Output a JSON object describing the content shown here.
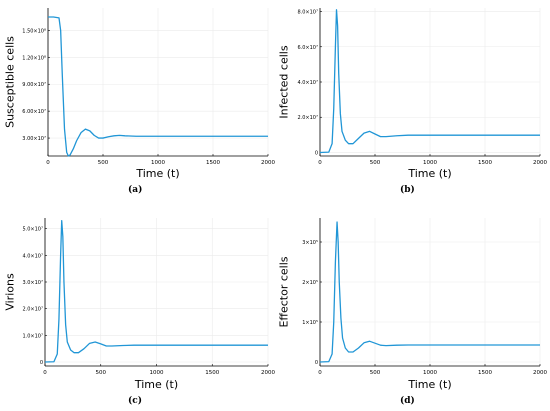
{
  "chart_data": [
    {
      "type": "line",
      "panel_label": "(a)",
      "xlabel": "Time (t)",
      "ylabel": "Susceptible cells",
      "xlim": [
        0,
        2000
      ],
      "ylim": [
        10000000,
        175000000
      ],
      "xticks": [
        0,
        500,
        1000,
        1500,
        2000
      ],
      "xtick_labels": [
        "0",
        "500",
        "1000",
        "1500",
        "2000"
      ],
      "yticks": [
        30000000,
        60000000,
        90000000,
        120000000,
        150000000
      ],
      "ytick_labels": [
        "3.00×10⁷",
        "6.00×10⁷",
        "9.00×10⁷",
        "1.20×10⁸",
        "1.50×10⁸"
      ],
      "grid": true,
      "color": "#2196d6",
      "series": [
        {
          "x": [
            0,
            50,
            100,
            115,
            130,
            150,
            170,
            185,
            200,
            230,
            260,
            300,
            340,
            380,
            420,
            460,
            500,
            550,
            600,
            650,
            700,
            800,
            900,
            1000,
            1500,
            2000
          ],
          "values": [
            165000000,
            165000000,
            164000000,
            150000000,
            100000000,
            40000000,
            14000000,
            10000000,
            11000000,
            18000000,
            27000000,
            36000000,
            40000000,
            38000000,
            33000000,
            30000000,
            30000000,
            31500000,
            32500000,
            33000000,
            32500000,
            32000000,
            32000000,
            32000000,
            32000000,
            32000000
          ]
        }
      ]
    },
    {
      "type": "line",
      "panel_label": "(b)",
      "xlabel": "Time (t)",
      "ylabel": "Infected cells",
      "xlim": [
        0,
        2000
      ],
      "ylim": [
        -2000000,
        82000000
      ],
      "xticks": [
        0,
        500,
        1000,
        1500,
        2000
      ],
      "xtick_labels": [
        "0",
        "500",
        "1000",
        "1500",
        "2000"
      ],
      "yticks": [
        0,
        20000000,
        40000000,
        60000000,
        80000000
      ],
      "ytick_labels": [
        "0",
        "2.0×10⁷",
        "4.0×10⁷",
        "6.0×10⁷",
        "8.0×10⁷"
      ],
      "grid": true,
      "color": "#2196d6",
      "series": [
        {
          "x": [
            0,
            80,
            110,
            125,
            140,
            150,
            160,
            170,
            185,
            200,
            230,
            260,
            300,
            350,
            400,
            450,
            500,
            550,
            600,
            700,
            800,
            1000,
            1500,
            2000
          ],
          "values": [
            0,
            200000,
            5000000,
            25000000,
            60000000,
            81000000,
            72000000,
            45000000,
            22000000,
            12000000,
            7000000,
            5000000,
            5000000,
            8000000,
            11000000,
            12000000,
            10500000,
            9000000,
            9000000,
            9500000,
            9800000,
            9800000,
            9800000,
            9800000
          ]
        }
      ]
    },
    {
      "type": "line",
      "panel_label": "(c)",
      "xlabel": "Time (t)",
      "ylabel": "Virions",
      "xlim": [
        0,
        2000
      ],
      "ylim": [
        -1500000,
        54000000
      ],
      "xticks": [
        0,
        500,
        1000,
        1500,
        2000
      ],
      "xtick_labels": [
        "0",
        "500",
        "1000",
        "1500",
        "2000"
      ],
      "yticks": [
        0,
        10000000,
        20000000,
        30000000,
        40000000,
        50000000
      ],
      "ytick_labels": [
        "0",
        "1.0×10⁷",
        "2.0×10⁷",
        "3.0×10⁷",
        "4.0×10⁷",
        "5.0×10⁷"
      ],
      "grid": true,
      "color": "#2196d6",
      "series": [
        {
          "x": [
            0,
            80,
            110,
            125,
            140,
            150,
            160,
            170,
            185,
            200,
            230,
            260,
            300,
            350,
            400,
            450,
            500,
            550,
            600,
            700,
            800,
            1000,
            1500,
            2000
          ],
          "values": [
            0,
            100000,
            3000000,
            16000000,
            40000000,
            53000000,
            47000000,
            30000000,
            14000000,
            7500000,
            4500000,
            3500000,
            3500000,
            5000000,
            7000000,
            7500000,
            6800000,
            6000000,
            6000000,
            6200000,
            6300000,
            6300000,
            6300000,
            6300000
          ]
        }
      ]
    },
    {
      "type": "line",
      "panel_label": "(d)",
      "xlabel": "Time (t)",
      "ylabel": "Effector cells",
      "xlim": [
        0,
        2000
      ],
      "ylim": [
        -10000,
        360000
      ],
      "xticks": [
        0,
        500,
        1000,
        1500,
        2000
      ],
      "xtick_labels": [
        "0",
        "500",
        "1000",
        "1500",
        "2000"
      ],
      "yticks": [
        0,
        100000,
        200000,
        300000
      ],
      "ytick_labels": [
        "0",
        "1×10⁵",
        "2×10⁵",
        "3×10⁵"
      ],
      "grid": true,
      "color": "#2196d6",
      "series": [
        {
          "x": [
            0,
            80,
            110,
            125,
            140,
            155,
            165,
            175,
            190,
            205,
            230,
            260,
            300,
            350,
            400,
            450,
            500,
            550,
            600,
            700,
            800,
            1000,
            1500,
            2000
          ],
          "values": [
            0,
            1000,
            20000,
            100000,
            250000,
            350000,
            300000,
            200000,
            110000,
            60000,
            35000,
            25000,
            25000,
            35000,
            48000,
            52000,
            47000,
            42000,
            41000,
            42000,
            42500,
            42500,
            42500,
            42500
          ]
        }
      ]
    }
  ]
}
